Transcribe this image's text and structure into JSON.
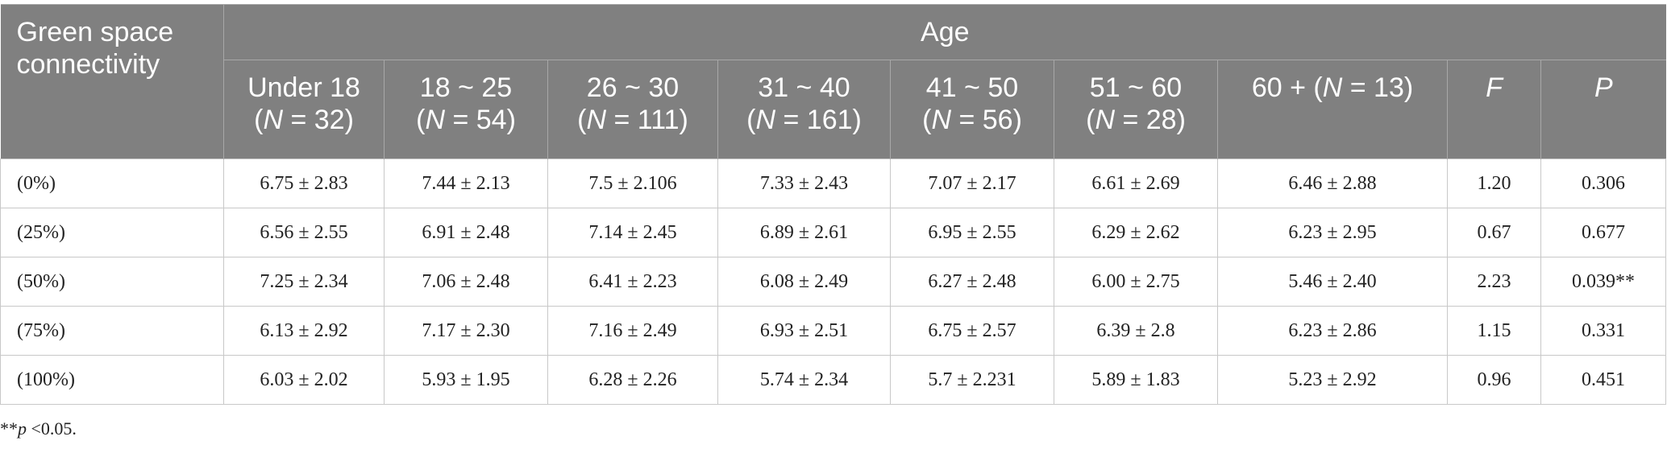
{
  "table": {
    "corner": "Green space connectivity",
    "group": "Age",
    "columns": [
      {
        "label": "Under 18",
        "n": "(N = 32)"
      },
      {
        "label": "18 ~ 25",
        "n": "(N = 54)"
      },
      {
        "label": "26 ~ 30",
        "n": "(N = 111)"
      },
      {
        "label": "31 ~ 40",
        "n": "(N = 161)"
      },
      {
        "label": "41 ~ 50",
        "n": "(N = 56)"
      },
      {
        "label": "51 ~ 60",
        "n": "(N = 28)"
      },
      {
        "label": "60 + (N = 13)"
      },
      {
        "label": "F",
        "italic": true
      },
      {
        "label": "P",
        "italic": true
      }
    ],
    "rows": [
      {
        "label": "(0%)",
        "cells": [
          "6.75 ± 2.83",
          "7.44 ± 2.13",
          "7.5 ± 2.106",
          "7.33 ± 2.43",
          "7.07 ± 2.17",
          "6.61 ± 2.69",
          "6.46 ± 2.88",
          "1.20",
          "0.306"
        ]
      },
      {
        "label": "(25%)",
        "cells": [
          "6.56 ± 2.55",
          "6.91 ± 2.48",
          "7.14 ± 2.45",
          "6.89 ± 2.61",
          "6.95 ± 2.55",
          "6.29 ± 2.62",
          "6.23 ± 2.95",
          "0.67",
          "0.677"
        ]
      },
      {
        "label": "(50%)",
        "cells": [
          "7.25 ± 2.34",
          "7.06 ± 2.48",
          "6.41 ± 2.23",
          "6.08 ± 2.49",
          "6.27 ± 2.48",
          "6.00 ± 2.75",
          "5.46 ± 2.40",
          "2.23",
          "0.039**"
        ]
      },
      {
        "label": "(75%)",
        "cells": [
          "6.13 ± 2.92",
          "7.17 ± 2.30",
          "7.16 ± 2.49",
          "6.93 ± 2.51",
          "6.75 ± 2.57",
          "6.39 ± 2.8",
          "6.23 ± 2.86",
          "1.15",
          "0.331"
        ]
      },
      {
        "label": "(100%)",
        "cells": [
          "6.03 ± 2.02",
          "5.93 ± 1.95",
          "6.28 ± 2.26",
          "5.74 ± 2.34",
          "5.7 ± 2.231",
          "5.89 ± 1.83",
          "5.23 ± 2.92",
          "0.96",
          "0.451"
        ]
      }
    ],
    "footnote": {
      "prefix": "**",
      "var": "p",
      "rest": " <0.05."
    }
  }
}
